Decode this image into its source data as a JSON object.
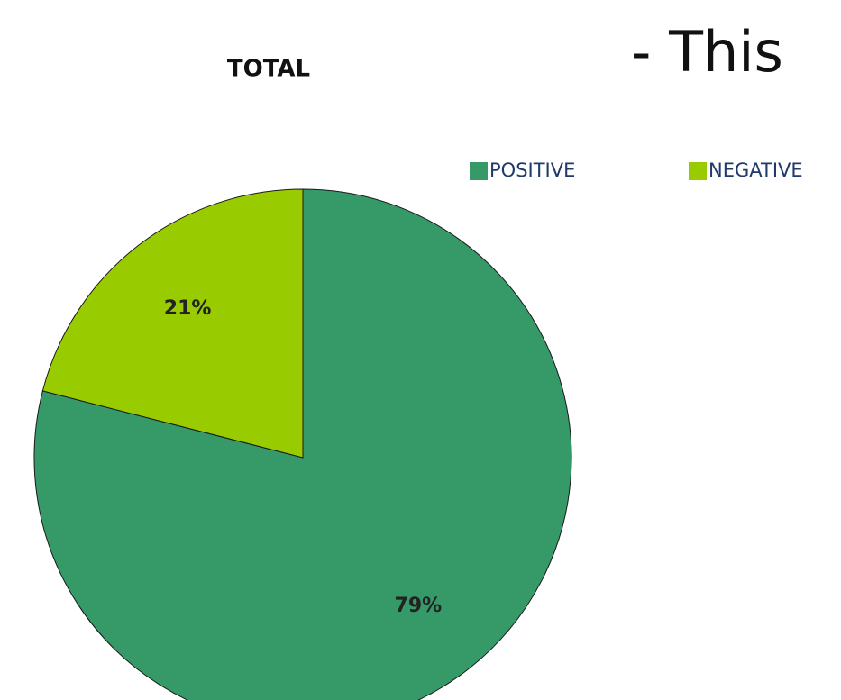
{
  "chart_data": {
    "type": "pie",
    "title": "TOTAL",
    "annotations": [
      "- This"
    ],
    "categories": [
      "POSITIVE",
      "NEGATIVE"
    ],
    "values": [
      79,
      21
    ],
    "value_labels": [
      "79%",
      "21%"
    ],
    "colors": [
      "#369a68",
      "#99cc00"
    ],
    "legend": "top"
  }
}
